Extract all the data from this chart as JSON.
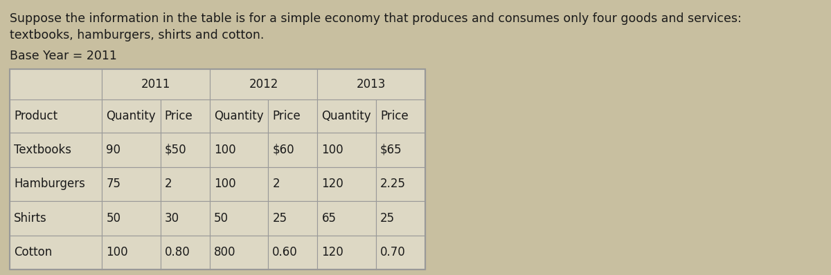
{
  "title_line1": "Suppose the information in the table is for a simple economy that produces and consumes only four goods and services:",
  "title_line2": "textbooks, hamburgers, shirts and cotton.",
  "base_year_label": "Base Year = 2011",
  "year_headers": [
    "2011",
    "2012",
    "2013"
  ],
  "col_headers": [
    "Product",
    "Quantity",
    "Price",
    "Quantity",
    "Price",
    "Quantity",
    "Price"
  ],
  "products": [
    "Textbooks",
    "Hamburgers",
    "Shirts",
    "Cotton"
  ],
  "data": [
    [
      "90",
      "$50",
      "100",
      "$60",
      "100",
      "$65"
    ],
    [
      "75",
      "2",
      "100",
      "2",
      "120",
      "2.25"
    ],
    [
      "50",
      "30",
      "50",
      "25",
      "65",
      "25"
    ],
    [
      "100",
      "0.80",
      "800",
      "0.60",
      "120",
      "0.70"
    ]
  ],
  "bg_color": "#c8bfa0",
  "table_bg": "#ddd8c4",
  "border_color": "#999999",
  "text_color": "#1a1a1a",
  "title_fontsize": 12.5,
  "base_year_fontsize": 12.5,
  "header_fontsize": 12,
  "cell_fontsize": 12,
  "font_family": "DejaVu Sans"
}
